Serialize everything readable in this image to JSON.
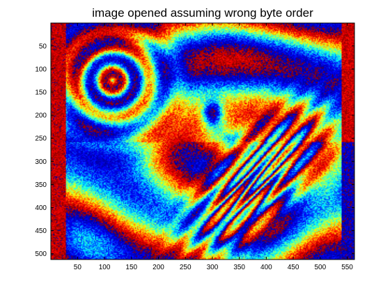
{
  "chart_data": {
    "type": "heatmap",
    "title": "image opened assuming wrong byte order",
    "xlabel": "",
    "ylabel": "",
    "xlim": [
      0.5,
      563.5
    ],
    "ylim": [
      0.5,
      512.5
    ],
    "y_direction": "reversed",
    "grid": false,
    "legend": "none",
    "colormap": "jet",
    "colormap_stops": [
      "#00008f",
      "#0000ff",
      "#00ffff",
      "#ffff00",
      "#ff0000",
      "#800000"
    ],
    "x_ticks": [
      50,
      100,
      150,
      200,
      250,
      300,
      350,
      400,
      450,
      500,
      550
    ],
    "y_ticks": [
      50,
      100,
      150,
      200,
      250,
      300,
      350,
      400,
      450,
      500
    ],
    "background_color": "#ffffff",
    "axis_color": "#000000"
  }
}
